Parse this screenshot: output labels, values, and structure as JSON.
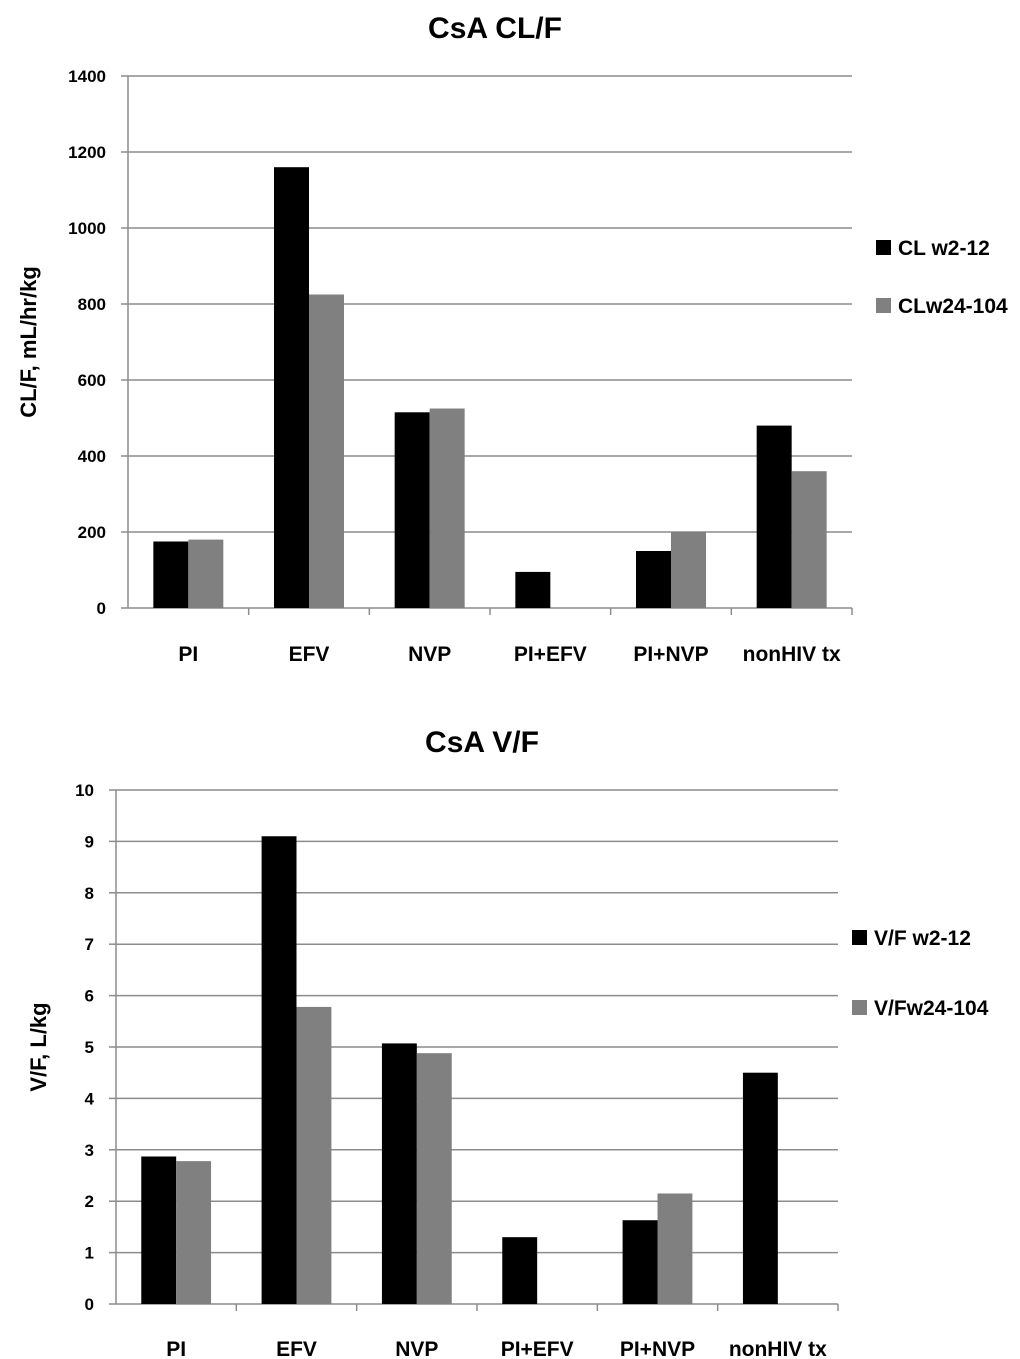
{
  "chart_data": [
    {
      "type": "bar",
      "title": "CsA CL/F",
      "xlabel": "",
      "ylabel": "CL/F, mL/hr/kg",
      "ylim": [
        0,
        1400
      ],
      "yticks": [
        0,
        200,
        400,
        600,
        800,
        1000,
        1200,
        1400
      ],
      "grid": true,
      "legend_position": "right",
      "categories": [
        "PI",
        "EFV",
        "NVP",
        "PI+EFV",
        "PI+NVP",
        "nonHIV tx"
      ],
      "series": [
        {
          "name": "CL w2-12",
          "color": "#000000",
          "values": [
            175,
            1160,
            515,
            95,
            150,
            480
          ]
        },
        {
          "name": "CLw24-104",
          "color": "#808080",
          "values": [
            180,
            825,
            525,
            0,
            200,
            360
          ]
        }
      ]
    },
    {
      "type": "bar",
      "title": "CsA V/F",
      "xlabel": "",
      "ylabel": "V/F,  L/kg",
      "ylim": [
        0,
        10
      ],
      "yticks": [
        0,
        1,
        2,
        3,
        4,
        5,
        6,
        7,
        8,
        9,
        10
      ],
      "grid": true,
      "legend_position": "right",
      "categories": [
        "PI",
        "EFV",
        "NVP",
        "PI+EFV",
        "PI+NVP",
        "nonHIV tx"
      ],
      "series": [
        {
          "name": "V/F w2-12",
          "color": "#000000",
          "values": [
            2.87,
            9.1,
            5.07,
            1.3,
            1.63,
            4.5
          ]
        },
        {
          "name": "V/Fw24-104",
          "color": "#808080",
          "values": [
            2.78,
            5.78,
            4.88,
            0,
            2.15,
            0
          ]
        }
      ]
    }
  ]
}
